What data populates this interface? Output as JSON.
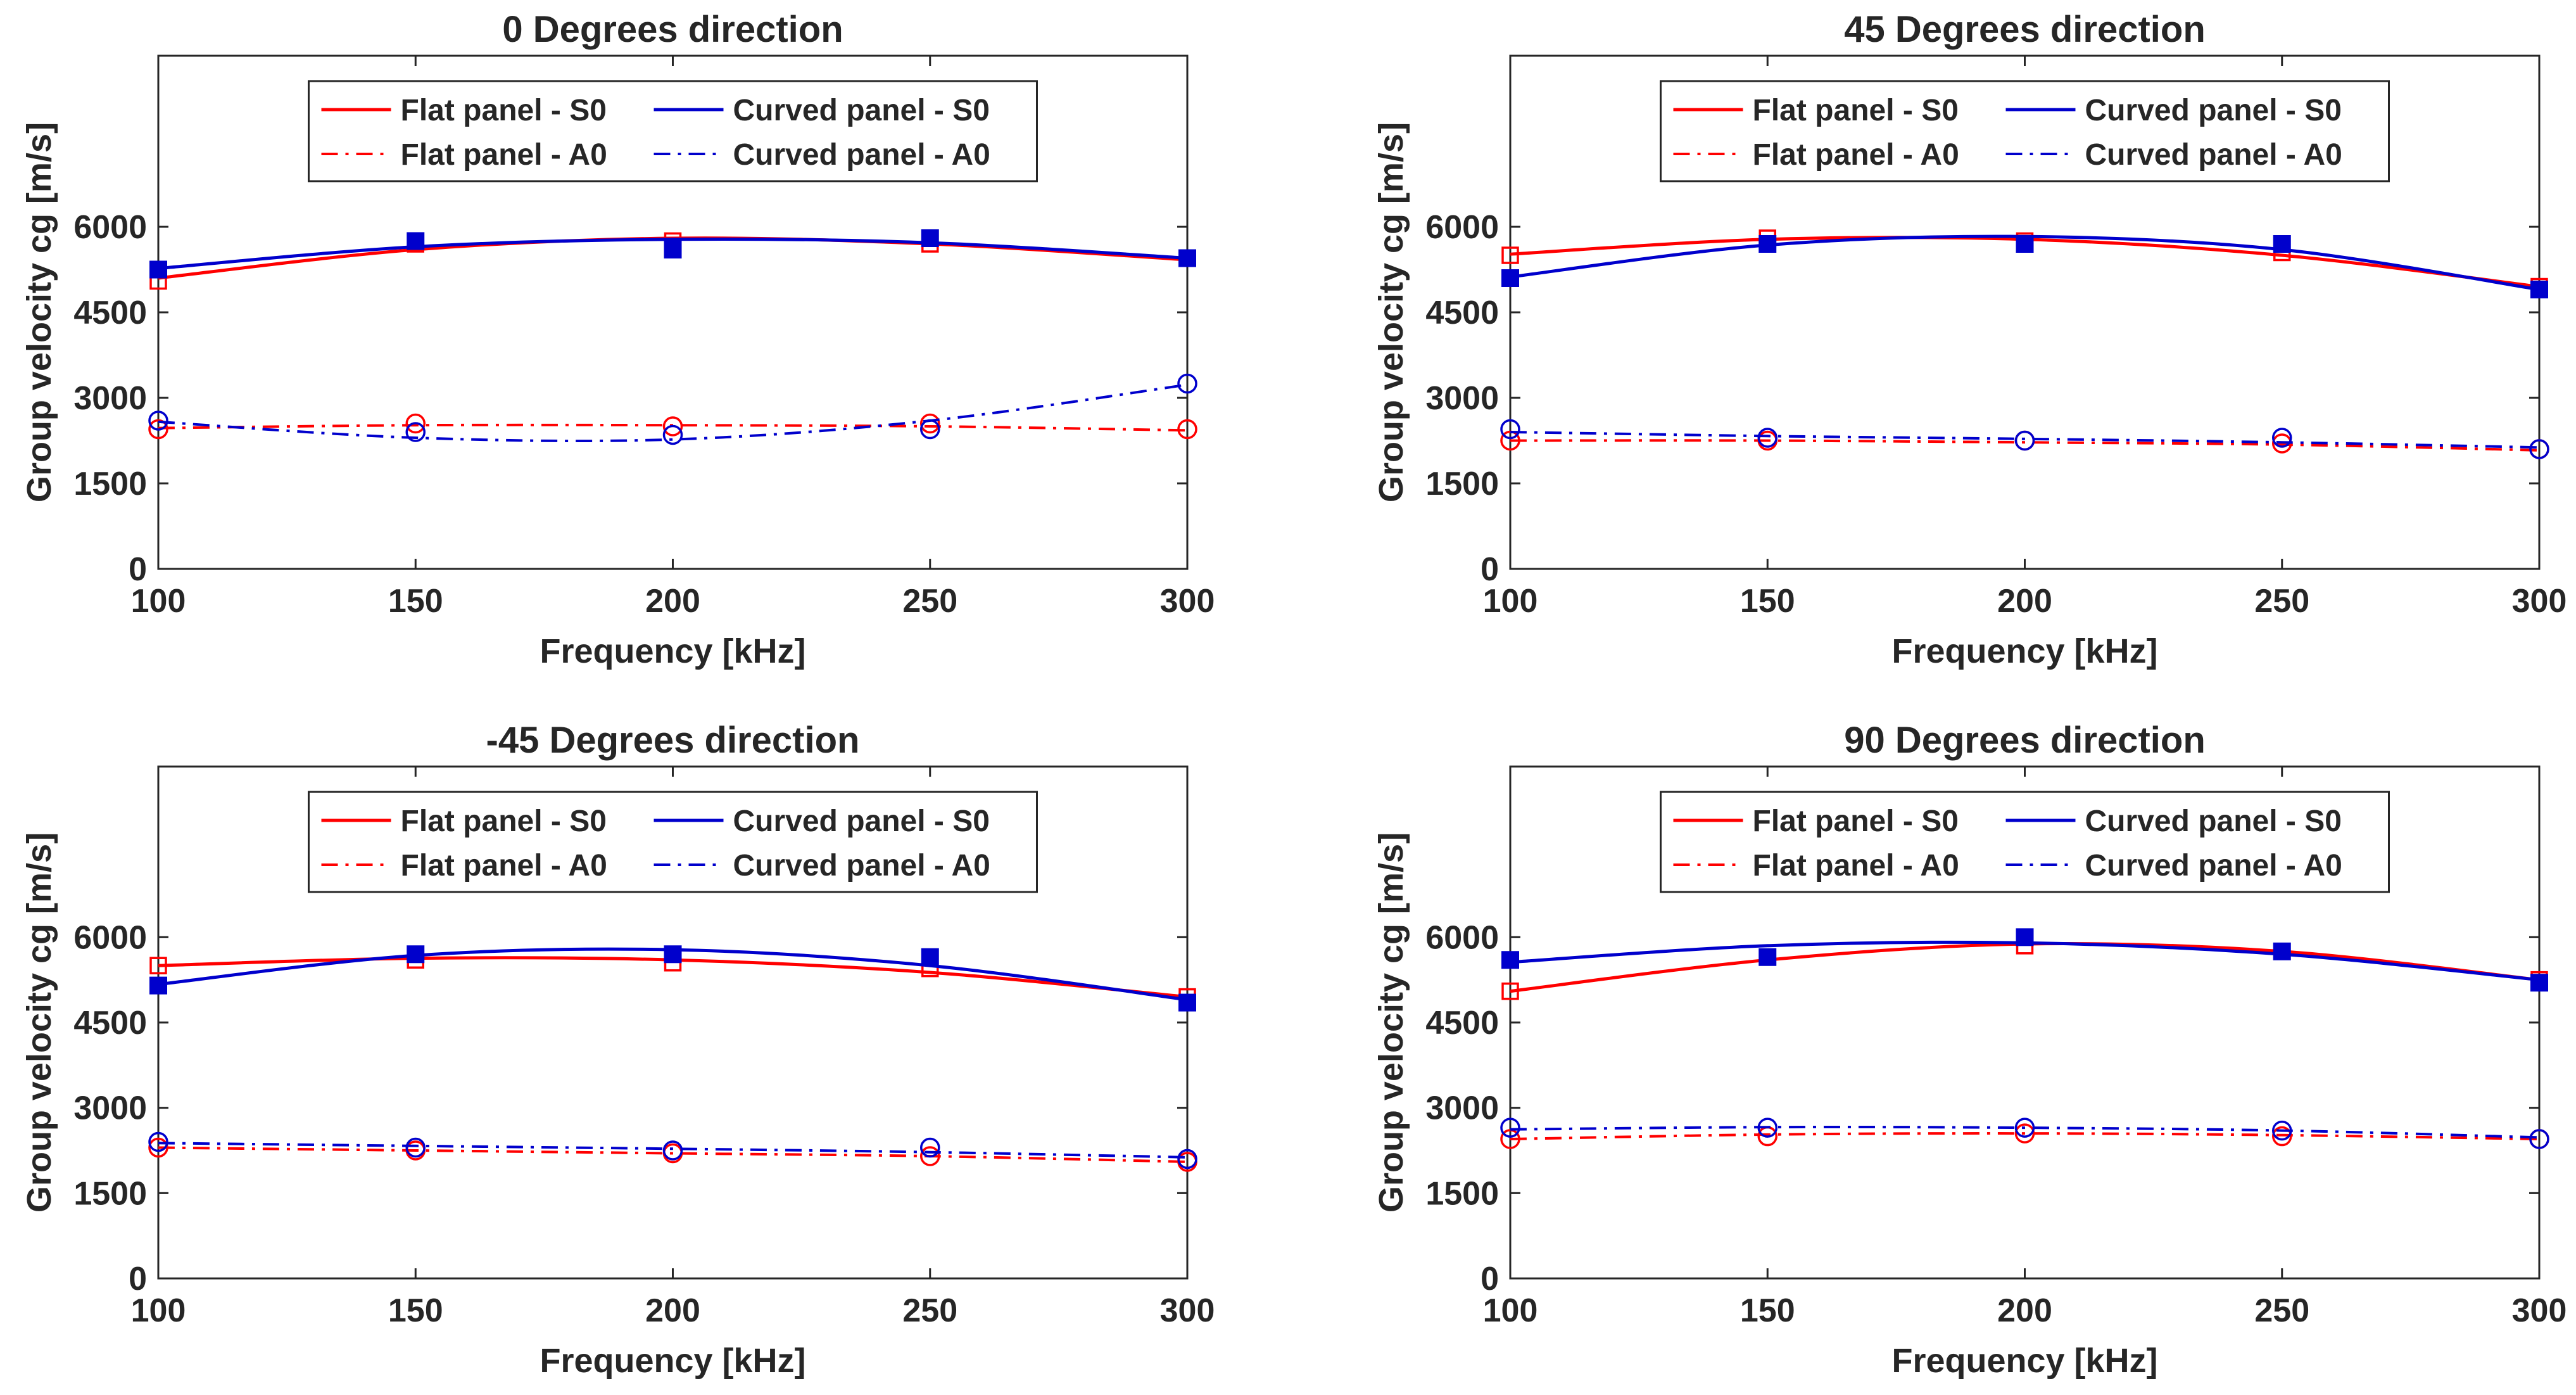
{
  "figure": {
    "legend_labels": {
      "flat_s0": "Flat panel - S0",
      "curved_s0": "Curved panel - S0",
      "flat_a0": "Flat panel - A0",
      "curved_a0": "Curved panel - A0"
    },
    "colors": {
      "flat": "#ff0000",
      "curved": "#0000cc",
      "axis": "#262626"
    }
  },
  "chart_data": [
    {
      "type": "line",
      "title": "0 Degrees direction",
      "xlabel": "Frequency [kHz]",
      "ylabel": "Group velocity cg [m/s]",
      "xlim": [
        100,
        300
      ],
      "ylim": [
        0,
        9000
      ],
      "xticks": [
        100,
        150,
        200,
        250,
        300
      ],
      "yticks": [
        0,
        1500,
        3000,
        4500,
        6000
      ],
      "legend_location": "top-center",
      "x": [
        100,
        150,
        200,
        250,
        300
      ],
      "series": [
        {
          "name": "Flat panel - S0",
          "key": "flat_s0",
          "color": "#ff0000",
          "dash": "solid",
          "marker": "square-open",
          "values": [
            5050,
            5700,
            5750,
            5700,
            5450
          ],
          "fit": [
            5100,
            5600,
            5800,
            5700,
            5420
          ]
        },
        {
          "name": "Curved panel - S0",
          "key": "curved_s0",
          "color": "#0000cc",
          "dash": "solid",
          "marker": "square-filled",
          "values": [
            5250,
            5750,
            5600,
            5800,
            5450
          ],
          "fit": [
            5270,
            5650,
            5780,
            5720,
            5450
          ]
        },
        {
          "name": "Flat panel - A0",
          "key": "flat_a0",
          "color": "#ff0000",
          "dash": "dashdot",
          "marker": "circle-open",
          "values": [
            2450,
            2550,
            2500,
            2550,
            2450
          ],
          "fit": [
            2470,
            2520,
            2520,
            2500,
            2430
          ]
        },
        {
          "name": "Curved panel - A0",
          "key": "curved_a0",
          "color": "#0000cc",
          "dash": "dashdot",
          "marker": "circle-open",
          "values": [
            2600,
            2400,
            2350,
            2450,
            3250
          ],
          "fit": [
            2580,
            2300,
            2270,
            2600,
            3230
          ]
        }
      ]
    },
    {
      "type": "line",
      "title": "45 Degrees direction",
      "xlabel": "Frequency [kHz]",
      "ylabel": "Group velocity cg [m/s]",
      "xlim": [
        100,
        300
      ],
      "ylim": [
        0,
        9000
      ],
      "xticks": [
        100,
        150,
        200,
        250,
        300
      ],
      "yticks": [
        0,
        1500,
        3000,
        4500,
        6000
      ],
      "legend_location": "top-center",
      "x": [
        100,
        150,
        200,
        250,
        300
      ],
      "series": [
        {
          "name": "Flat panel - S0",
          "key": "flat_s0",
          "color": "#ff0000",
          "dash": "solid",
          "marker": "square-open",
          "values": [
            5500,
            5800,
            5750,
            5550,
            4950
          ],
          "fit": [
            5520,
            5780,
            5780,
            5500,
            4950
          ]
        },
        {
          "name": "Curved panel - S0",
          "key": "curved_s0",
          "color": "#0000cc",
          "dash": "solid",
          "marker": "square-filled",
          "values": [
            5100,
            5700,
            5700,
            5700,
            4900
          ],
          "fit": [
            5120,
            5680,
            5830,
            5600,
            4900
          ]
        },
        {
          "name": "Flat panel - A0",
          "key": "flat_a0",
          "color": "#ff0000",
          "dash": "dashdot",
          "marker": "circle-open",
          "values": [
            2250,
            2250,
            2250,
            2200,
            2100
          ],
          "fit": [
            2250,
            2250,
            2220,
            2180,
            2080
          ]
        },
        {
          "name": "Curved panel - A0",
          "key": "curved_a0",
          "color": "#0000cc",
          "dash": "dashdot",
          "marker": "circle-open",
          "values": [
            2450,
            2300,
            2250,
            2300,
            2100
          ],
          "fit": [
            2400,
            2330,
            2280,
            2220,
            2130
          ]
        }
      ]
    },
    {
      "type": "line",
      "title": "-45 Degrees direction",
      "xlabel": "Frequency [kHz]",
      "ylabel": "Group velocity cg [m/s]",
      "xlim": [
        100,
        300
      ],
      "ylim": [
        0,
        9000
      ],
      "xticks": [
        100,
        150,
        200,
        250,
        300
      ],
      "yticks": [
        0,
        1500,
        3000,
        4500,
        6000
      ],
      "legend_location": "top-center",
      "x": [
        100,
        150,
        200,
        250,
        300
      ],
      "series": [
        {
          "name": "Flat panel - S0",
          "key": "flat_s0",
          "color": "#ff0000",
          "dash": "solid",
          "marker": "square-open",
          "values": [
            5500,
            5600,
            5550,
            5450,
            4950
          ],
          "fit": [
            5500,
            5630,
            5600,
            5380,
            4950
          ]
        },
        {
          "name": "Curved panel - S0",
          "key": "curved_s0",
          "color": "#0000cc",
          "dash": "solid",
          "marker": "square-filled",
          "values": [
            5150,
            5700,
            5700,
            5650,
            4850
          ],
          "fit": [
            5170,
            5680,
            5780,
            5500,
            4900
          ]
        },
        {
          "name": "Flat panel - A0",
          "key": "flat_a0",
          "color": "#ff0000",
          "dash": "dashdot",
          "marker": "circle-open",
          "values": [
            2300,
            2250,
            2200,
            2150,
            2050
          ],
          "fit": [
            2300,
            2250,
            2200,
            2150,
            2050
          ]
        },
        {
          "name": "Curved panel - A0",
          "key": "curved_a0",
          "color": "#0000cc",
          "dash": "dashdot",
          "marker": "circle-open",
          "values": [
            2400,
            2300,
            2250,
            2300,
            2100
          ],
          "fit": [
            2380,
            2330,
            2280,
            2220,
            2130
          ]
        }
      ]
    },
    {
      "type": "line",
      "title": "90 Degrees direction",
      "xlabel": "Frequency [kHz]",
      "ylabel": "Group velocity cg [m/s]",
      "xlim": [
        100,
        300
      ],
      "ylim": [
        0,
        9000
      ],
      "xticks": [
        100,
        150,
        200,
        250,
        300
      ],
      "yticks": [
        0,
        1500,
        3000,
        4500,
        6000
      ],
      "legend_location": "top-center",
      "x": [
        100,
        150,
        200,
        250,
        300
      ],
      "series": [
        {
          "name": "Flat panel - S0",
          "key": "flat_s0",
          "color": "#ff0000",
          "dash": "solid",
          "marker": "square-open",
          "values": [
            5050,
            5650,
            5850,
            5750,
            5250
          ],
          "fit": [
            5050,
            5600,
            5880,
            5750,
            5250
          ]
        },
        {
          "name": "Curved panel - S0",
          "key": "curved_s0",
          "color": "#0000cc",
          "dash": "solid",
          "marker": "square-filled",
          "values": [
            5600,
            5650,
            6000,
            5750,
            5200
          ],
          "fit": [
            5560,
            5850,
            5900,
            5700,
            5250
          ]
        },
        {
          "name": "Flat panel - A0",
          "key": "flat_a0",
          "color": "#ff0000",
          "dash": "dashdot",
          "marker": "circle-open",
          "values": [
            2450,
            2500,
            2550,
            2500,
            2450
          ],
          "fit": [
            2450,
            2530,
            2550,
            2520,
            2450
          ]
        },
        {
          "name": "Curved panel - A0",
          "key": "curved_a0",
          "color": "#0000cc",
          "dash": "dashdot",
          "marker": "circle-open",
          "values": [
            2650,
            2650,
            2650,
            2600,
            2450
          ],
          "fit": [
            2620,
            2660,
            2650,
            2600,
            2480
          ]
        }
      ]
    }
  ]
}
